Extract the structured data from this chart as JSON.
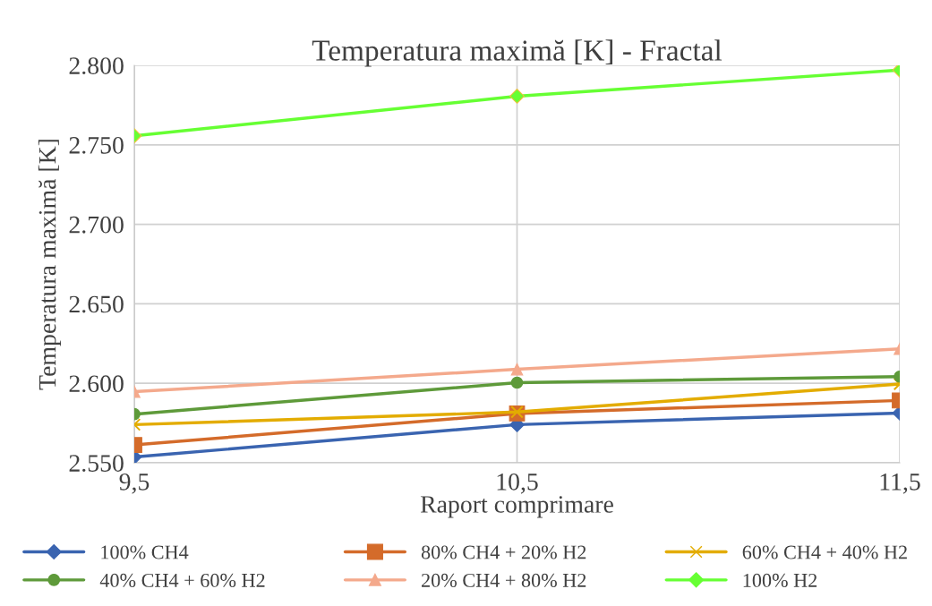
{
  "chart_data": {
    "type": "line",
    "title": "Temperatura maximă [K] - Fractal",
    "xlabel": "Raport comprimare",
    "ylabel": "Temperatura maximă [K]",
    "x": [
      9.5,
      10.5,
      11.5
    ],
    "xlim": [
      9.5,
      11.5
    ],
    "xticks": [
      {
        "value": 9.5,
        "label": "9,5"
      },
      {
        "value": 10.5,
        "label": "10,5"
      },
      {
        "value": 11.5,
        "label": "11,5"
      }
    ],
    "ylim": [
      2550,
      2800
    ],
    "yticks": [
      {
        "value": 2550,
        "label": "2.550"
      },
      {
        "value": 2600,
        "label": "2.600"
      },
      {
        "value": 2650,
        "label": "2.650"
      },
      {
        "value": 2700,
        "label": "2.700"
      },
      {
        "value": 2750,
        "label": "2.750"
      },
      {
        "value": 2800,
        "label": "2.800"
      }
    ],
    "grid": true,
    "legend": "bottom",
    "line_style": "solid",
    "series": [
      {
        "name": "100% CH4",
        "color": "#3a64b0",
        "marker": "diamond",
        "values": [
          2553.6,
          2574,
          2581.3
        ]
      },
      {
        "name": "80% CH4 + 20% H2",
        "color": "#d46b2a",
        "marker": "square",
        "values": [
          2561.2,
          2581,
          2589.2
        ]
      },
      {
        "name": "60% CH4 + 40% H2",
        "color": "#e3ac00",
        "marker": "cross",
        "values": [
          2574,
          2581.9,
          2599.5
        ]
      },
      {
        "name": "40% CH4 + 60% H2",
        "color": "#5e9a3a",
        "marker": "circle",
        "values": [
          2580.6,
          2600.4,
          2604.2
        ]
      },
      {
        "name": "20% CH4 + 80% H2",
        "color": "#f4a98c",
        "marker": "triangle",
        "values": [
          2594.7,
          2608.8,
          2621.7
        ]
      },
      {
        "name": "100% H2",
        "color": "#66ff33",
        "marker": "diamond",
        "values": [
          2755.7,
          2780.6,
          2797
        ]
      }
    ]
  }
}
